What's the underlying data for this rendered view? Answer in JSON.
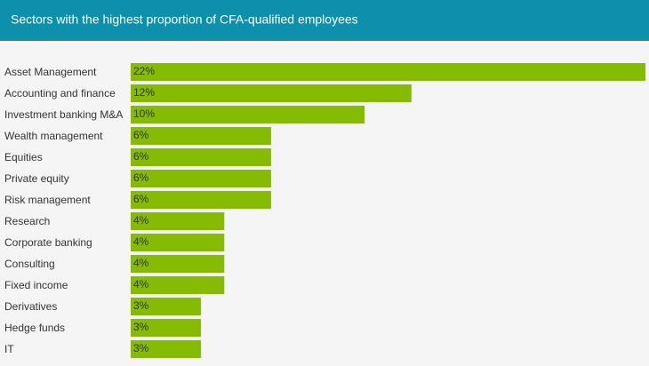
{
  "chart_data": {
    "type": "bar",
    "orientation": "horizontal",
    "title": "Sectors with the highest proportion of CFA-qualified employees",
    "categories": [
      "Asset Management",
      "Accounting and finance",
      "Investment banking M&A",
      "Wealth management",
      "Equities",
      "Private equity",
      "Risk management",
      "Research",
      "Corporate banking",
      "Consulting",
      "Fixed income",
      "Derivatives",
      "Hedge funds",
      "IT"
    ],
    "values": [
      22,
      12,
      10,
      6,
      6,
      6,
      6,
      4,
      4,
      4,
      4,
      3,
      3,
      3
    ],
    "value_labels": [
      "22%",
      "12%",
      "10%",
      "6%",
      "6%",
      "6%",
      "6%",
      "4%",
      "4%",
      "4%",
      "4%",
      "3%",
      "3%",
      "3%"
    ],
    "color": "#85bb00"
  }
}
